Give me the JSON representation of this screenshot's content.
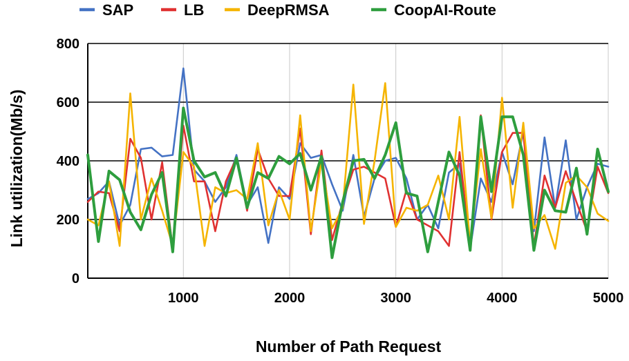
{
  "chart_data": {
    "type": "line",
    "title": "",
    "xlabel": "Number of Path Request",
    "ylabel": "Link utilization(Mb/s)",
    "xlim": [
      100,
      5000
    ],
    "ylim": [
      0,
      800
    ],
    "xticks": [
      1000,
      2000,
      3000,
      4000,
      5000
    ],
    "yticks": [
      0,
      200,
      400,
      600,
      800
    ],
    "grid": "horizontal and vertical",
    "legend_position": "top",
    "x": [
      100,
      200,
      300,
      400,
      500,
      600,
      700,
      800,
      900,
      1000,
      1100,
      1200,
      1300,
      1400,
      1500,
      1600,
      1700,
      1800,
      1900,
      2000,
      2100,
      2200,
      2300,
      2400,
      2500,
      2600,
      2700,
      2800,
      2900,
      3000,
      3100,
      3200,
      3300,
      3400,
      3500,
      3600,
      3700,
      3800,
      3900,
      4000,
      4100,
      4200,
      4300,
      4400,
      4500,
      4600,
      4700,
      4800,
      4900,
      5000
    ],
    "series": [
      {
        "name": "SAP",
        "color": "#4472C4",
        "values": [
          270,
          290,
          330,
          180,
          250,
          440,
          445,
          415,
          420,
          715,
          370,
          330,
          260,
          310,
          420,
          250,
          310,
          120,
          310,
          270,
          460,
          410,
          420,
          320,
          230,
          420,
          210,
          340,
          400,
          410,
          340,
          200,
          250,
          170,
          360,
          390,
          100,
          340,
          260,
          430,
          320,
          500,
          160,
          480,
          240,
          470,
          200,
          310,
          390,
          380
        ]
      },
      {
        "name": "LB",
        "color": "#E03131",
        "values": [
          260,
          295,
          290,
          160,
          475,
          410,
          200,
          395,
          100,
          520,
          330,
          330,
          160,
          330,
          410,
          230,
          440,
          340,
          280,
          280,
          510,
          150,
          435,
          130,
          260,
          370,
          380,
          360,
          340,
          175,
          300,
          200,
          180,
          160,
          110,
          430,
          100,
          555,
          200,
          430,
          495,
          495,
          110,
          350,
          240,
          365,
          260,
          160,
          380,
          290
        ]
      },
      {
        "name": "DeepRMSA",
        "color": "#F5B400",
        "values": [
          200,
          180,
          330,
          110,
          630,
          200,
          340,
          230,
          110,
          430,
          380,
          110,
          310,
          290,
          300,
          270,
          460,
          180,
          300,
          200,
          555,
          160,
          400,
          170,
          240,
          660,
          185,
          400,
          665,
          175,
          240,
          230,
          250,
          350,
          200,
          550,
          115,
          440,
          205,
          615,
          240,
          530,
          170,
          215,
          100,
          325,
          350,
          310,
          220,
          195
        ]
      },
      {
        "name": "CoopAI-Route",
        "color": "#2E9E3E",
        "values": [
          420,
          125,
          365,
          335,
          225,
          165,
          285,
          360,
          90,
          580,
          400,
          345,
          360,
          280,
          410,
          240,
          360,
          340,
          415,
          390,
          425,
          300,
          415,
          70,
          260,
          400,
          405,
          340,
          420,
          530,
          290,
          280,
          90,
          260,
          430,
          350,
          95,
          550,
          295,
          550,
          550,
          420,
          95,
          300,
          230,
          225,
          375,
          150,
          440,
          295
        ]
      }
    ]
  }
}
